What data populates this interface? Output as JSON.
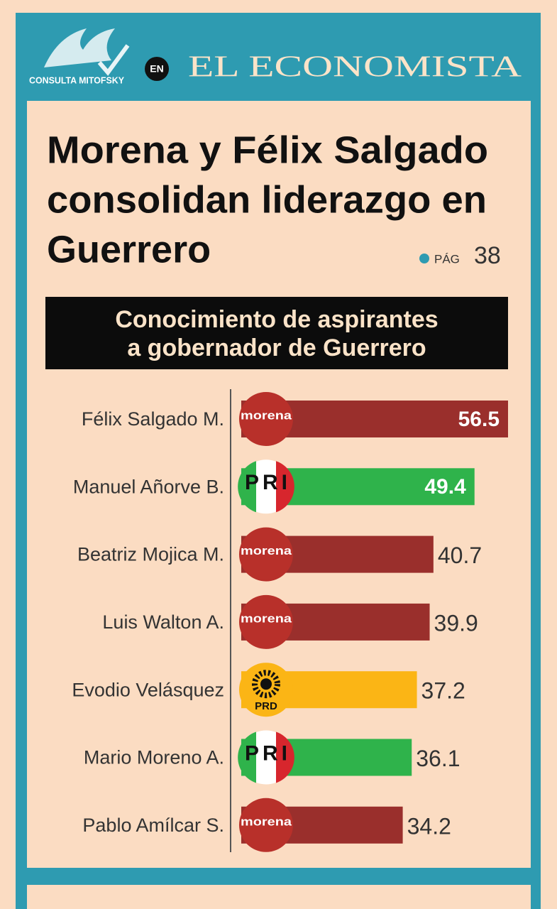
{
  "header": {
    "pollster": "CONSULTA MITOFSKY",
    "connector": "EN",
    "newspaper": "EL ECONOMISTA"
  },
  "headline": {
    "lines": [
      "Morena y Félix Salgado",
      "consolidan liderazgo en",
      "Guerrero"
    ],
    "page_ref": "PÁG",
    "page_number": "38"
  },
  "chart_data": {
    "type": "bar",
    "orientation": "horizontal",
    "title_lines": [
      "Conocimiento de aspirantes",
      "a gobernador de Guerrero"
    ],
    "categories": [
      "Félix Salgado M.",
      "Manuel Añorve B.",
      "Beatriz Mojica M.",
      "Luis Walton A.",
      "Evodio Velásquez",
      "Mario Moreno A.",
      "Pablo Amílcar S."
    ],
    "values": [
      56.5,
      49.4,
      40.7,
      39.9,
      37.2,
      36.1,
      34.2
    ],
    "party_logos": [
      "morena",
      "PRI",
      "morena",
      "morena",
      "PRD",
      "PRI",
      "morena"
    ],
    "colors": [
      "#9a2f2c",
      "#2fb34b",
      "#9a2f2c",
      "#9a2f2c",
      "#fbb515",
      "#2fb34b",
      "#9a2f2c"
    ],
    "labels_inside": [
      true,
      true,
      false,
      false,
      false,
      false,
      false
    ]
  }
}
